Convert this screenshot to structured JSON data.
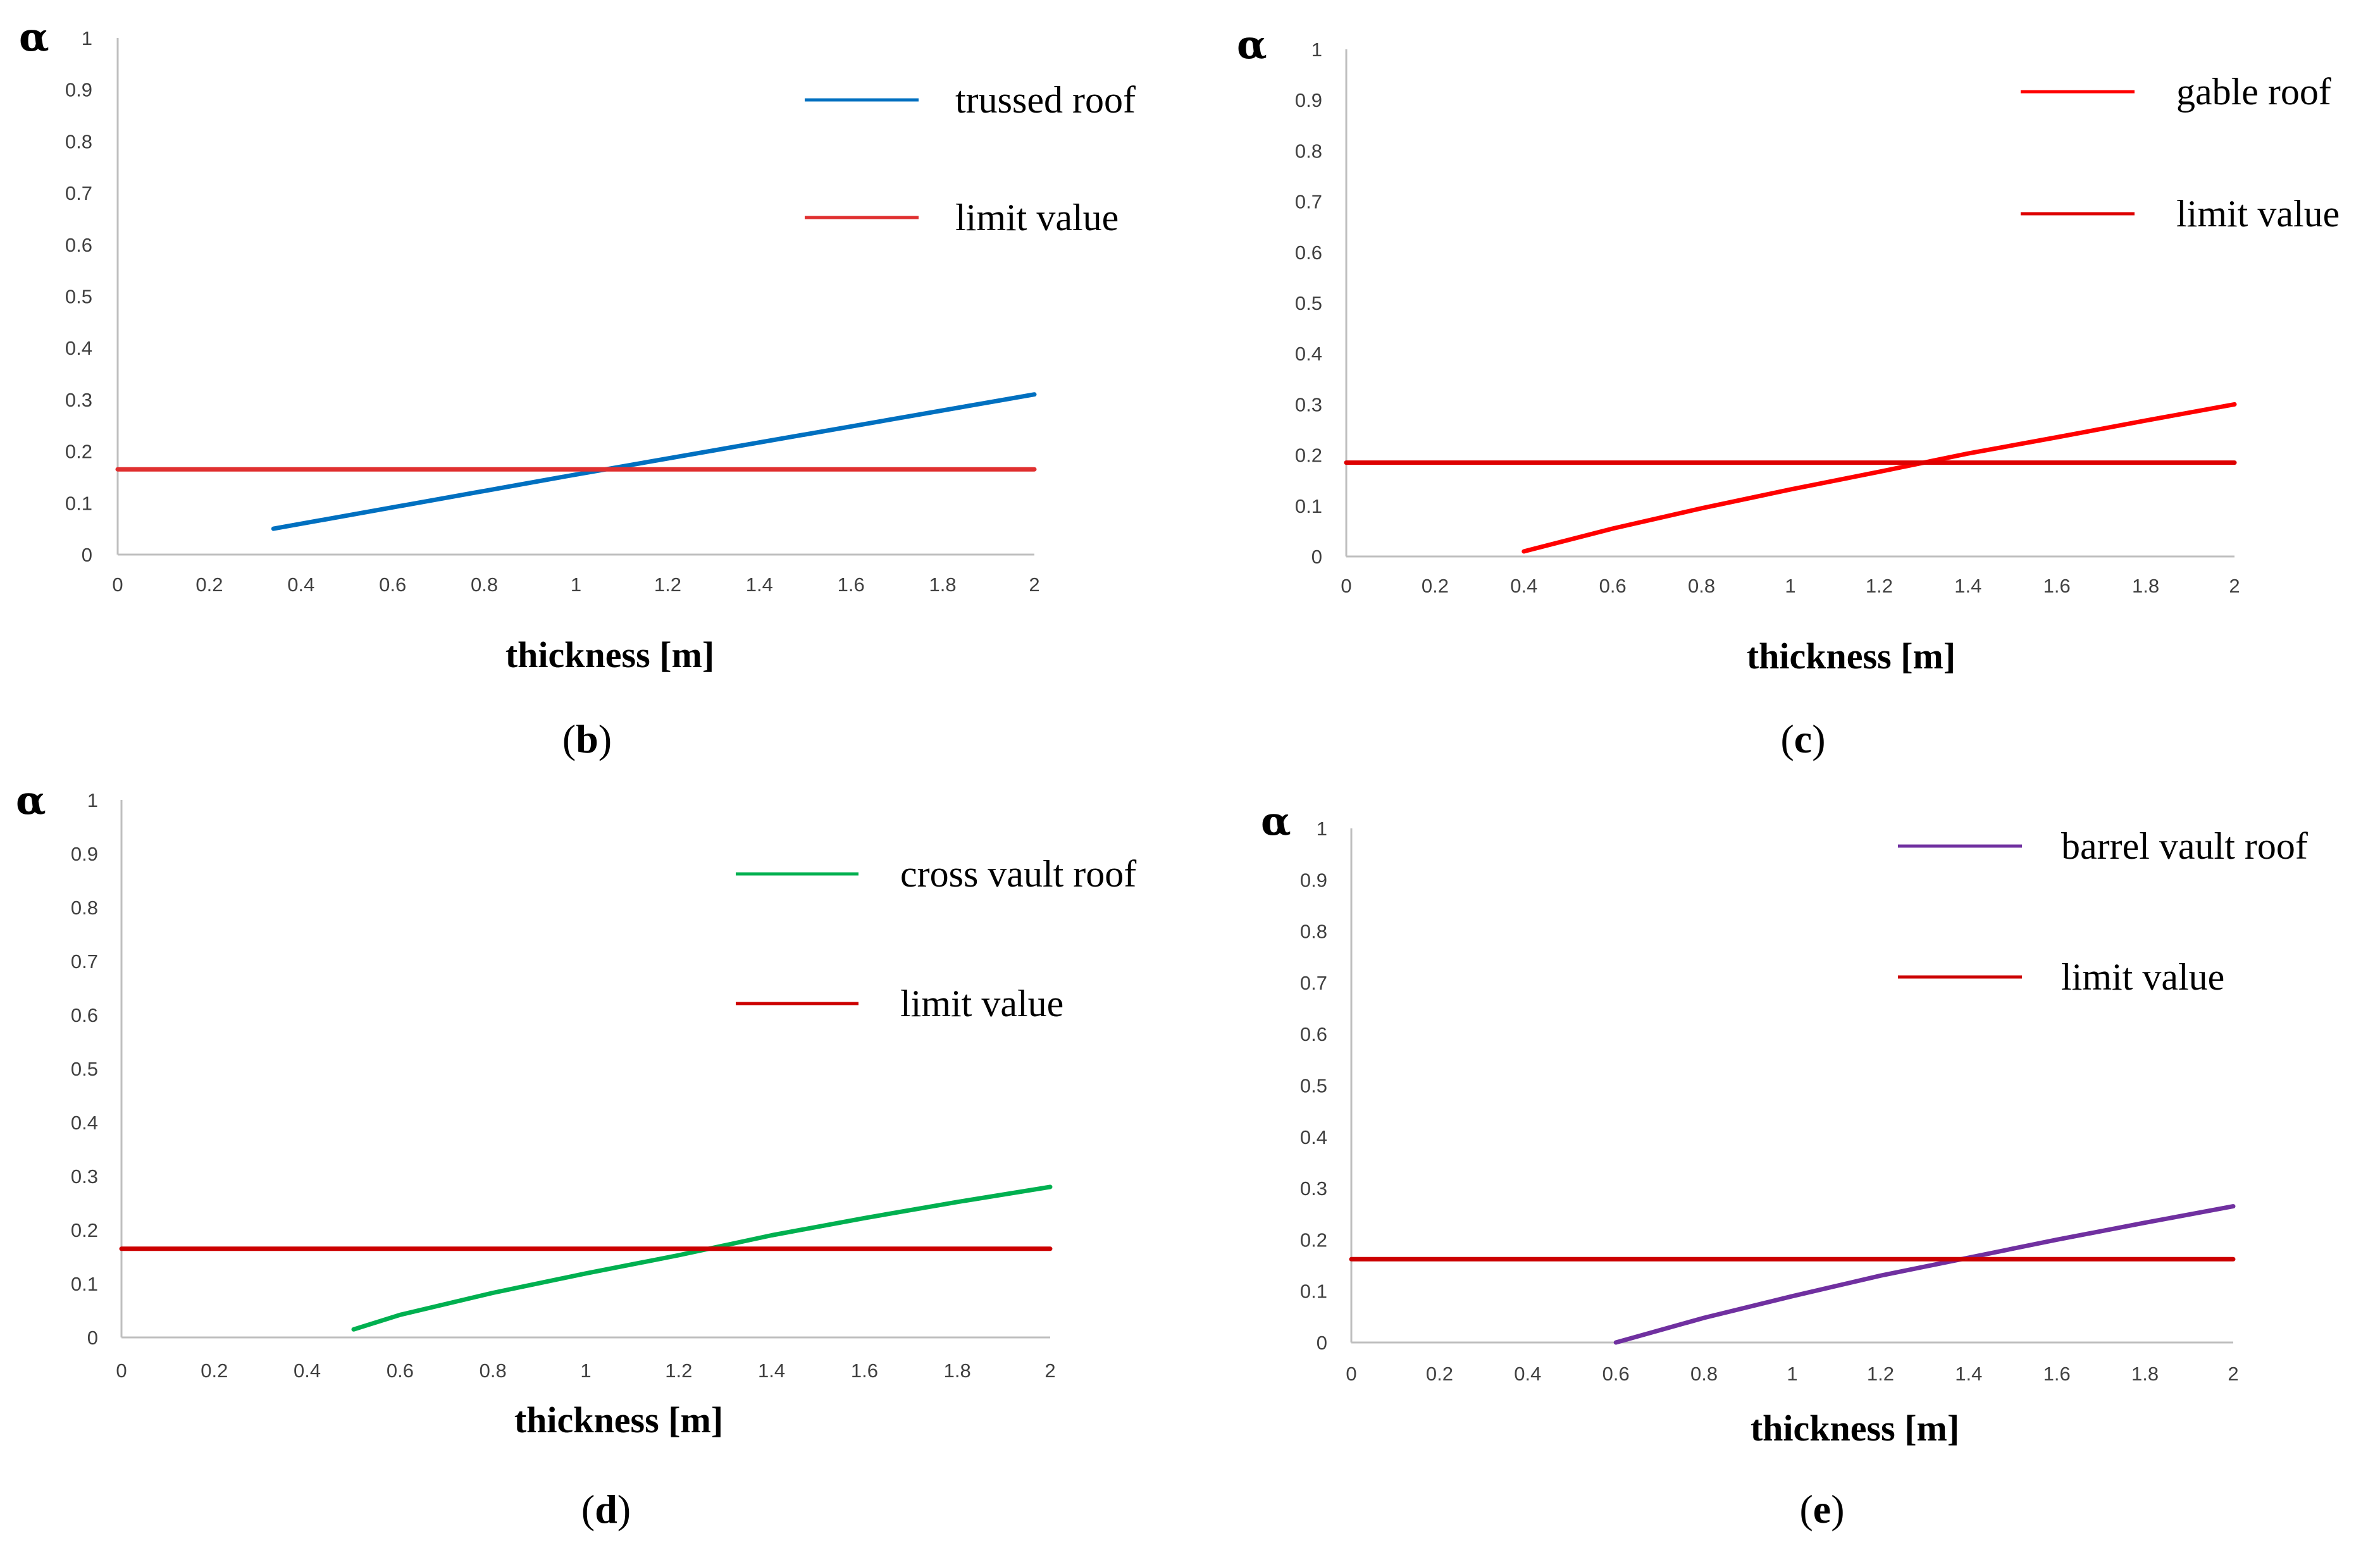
{
  "chart_data": [
    {
      "type": "line",
      "panel": "b",
      "ylabel": "α",
      "xlabel": "thickness [m]",
      "xlim": [
        0,
        2
      ],
      "ylim": [
        0,
        1
      ],
      "x_ticks": [
        "0",
        "0.2",
        "0.4",
        "0.6",
        "0.8",
        "1",
        "1.2",
        "1.4",
        "1.6",
        "1.8",
        "2"
      ],
      "y_ticks": [
        "0",
        "0.1",
        "0.2",
        "0.3",
        "0.4",
        "0.5",
        "0.6",
        "0.7",
        "0.8",
        "0.9",
        "1"
      ],
      "series": [
        {
          "name": "trussed roof",
          "color": "#0070c0",
          "x": [
            0.34,
            1.0,
            2.0
          ],
          "y": [
            0.05,
            0.155,
            0.31
          ]
        },
        {
          "name": "limit value",
          "color": "#e03030",
          "x": [
            0,
            2
          ],
          "y": [
            0.165,
            0.165
          ]
        }
      ]
    },
    {
      "type": "line",
      "panel": "c",
      "ylabel": "α",
      "xlabel": "thickness [m]",
      "xlim": [
        0,
        2
      ],
      "ylim": [
        0,
        1
      ],
      "x_ticks": [
        "0",
        "0.2",
        "0.4",
        "0.6",
        "0.8",
        "1",
        "1.2",
        "1.4",
        "1.6",
        "1.8",
        "2"
      ],
      "y_ticks": [
        "0",
        "0.1",
        "0.2",
        "0.3",
        "0.4",
        "0.5",
        "0.6",
        "0.7",
        "0.8",
        "0.9",
        "1"
      ],
      "series": [
        {
          "name": "gable roof",
          "color": "#ff0000",
          "x": [
            0.4,
            0.6,
            0.8,
            1.0,
            1.2,
            1.4,
            1.6,
            1.8,
            2.0
          ],
          "y": [
            0.01,
            0.055,
            0.095,
            0.132,
            0.167,
            0.203,
            0.235,
            0.268,
            0.3
          ]
        },
        {
          "name": "limit value",
          "color": "#dd0000",
          "x": [
            0,
            2
          ],
          "y": [
            0.185,
            0.185
          ]
        }
      ]
    },
    {
      "type": "line",
      "panel": "d",
      "ylabel": "α",
      "xlabel": "thickness [m]",
      "xlim": [
        0,
        2
      ],
      "ylim": [
        0,
        1
      ],
      "x_ticks": [
        "0",
        "0.2",
        "0.4",
        "0.6",
        "0.8",
        "1",
        "1.2",
        "1.4",
        "1.6",
        "1.8",
        "2"
      ],
      "y_ticks": [
        "0",
        "0.1",
        "0.2",
        "0.3",
        "0.4",
        "0.5",
        "0.6",
        "0.7",
        "0.8",
        "0.9",
        "1"
      ],
      "series": [
        {
          "name": "cross vault  roof",
          "color": "#00b050",
          "x": [
            0.5,
            0.6,
            0.8,
            1.0,
            1.2,
            1.4,
            1.6,
            1.8,
            2.0
          ],
          "y": [
            0.015,
            0.042,
            0.083,
            0.119,
            0.153,
            0.19,
            0.222,
            0.252,
            0.28
          ]
        },
        {
          "name": "limit value",
          "color": "#cc0000",
          "x": [
            0,
            2
          ],
          "y": [
            0.165,
            0.165
          ]
        }
      ]
    },
    {
      "type": "line",
      "panel": "e",
      "ylabel": "α",
      "xlabel": "thickness [m]",
      "xlim": [
        0,
        2
      ],
      "ylim": [
        0,
        1
      ],
      "x_ticks": [
        "0",
        "0.2",
        "0.4",
        "0.6",
        "0.8",
        "1",
        "1.2",
        "1.4",
        "1.6",
        "1.8",
        "2"
      ],
      "y_ticks": [
        "0",
        "0.1",
        "0.2",
        "0.3",
        "0.4",
        "0.5",
        "0.6",
        "0.7",
        "0.8",
        "0.9",
        "1"
      ],
      "series": [
        {
          "name": "barrel vault  roof",
          "color": "#7030a0",
          "x": [
            0.6,
            0.8,
            1.0,
            1.2,
            1.4,
            1.6,
            1.8,
            2.0
          ],
          "y": [
            0.0,
            0.048,
            0.09,
            0.13,
            0.165,
            0.2,
            0.233,
            0.265
          ]
        },
        {
          "name": "limit value",
          "color": "#cc0000",
          "x": [
            0,
            2
          ],
          "y": [
            0.162,
            0.162
          ]
        }
      ]
    }
  ]
}
